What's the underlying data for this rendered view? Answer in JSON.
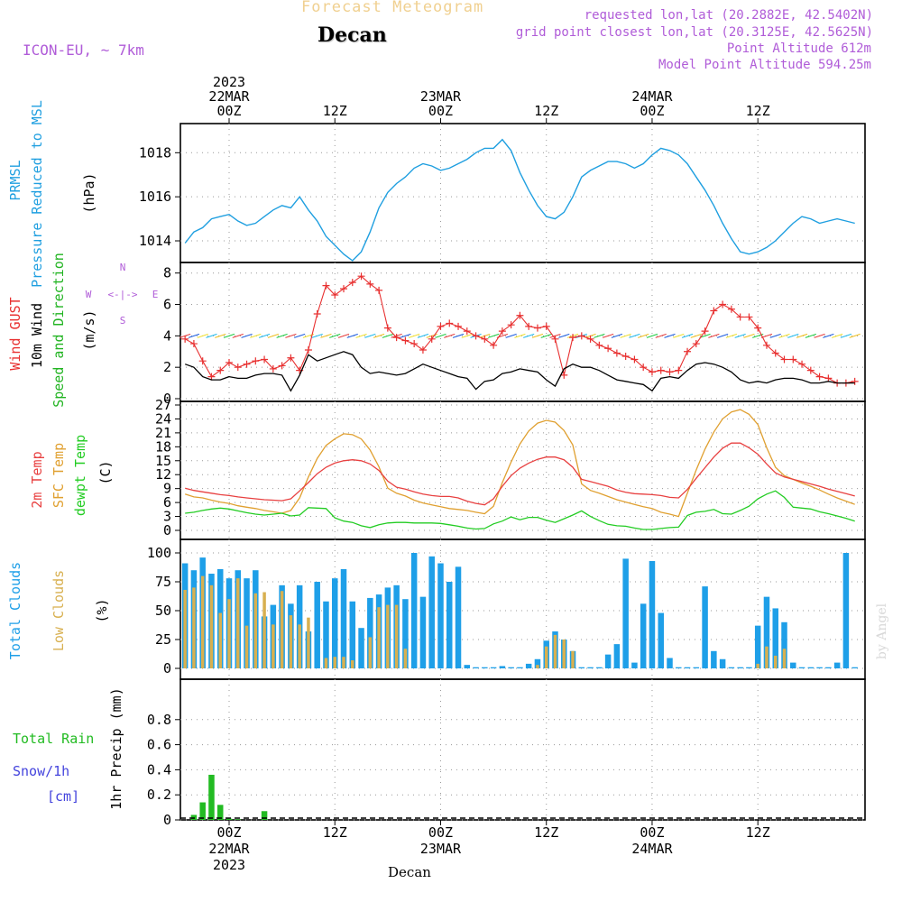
{
  "header": {
    "title": "Forecast Meteogram",
    "location": "Decan",
    "model": "ICON-EU, ~ 7km",
    "requested": "requested lon,lat (20.2882E, 42.5402N)",
    "grid_point": "grid point closest lon,lat (20.3125E, 42.5625N)",
    "point_altitude": "Point Altitude 612m",
    "model_altitude": "Model Point Altitude 594.25m",
    "watermark": "by Angel",
    "footer_location": "Decan",
    "compass": {
      "n": "N",
      "s": "S",
      "w": "W",
      "e": "E"
    },
    "compass_center": "<-|->"
  },
  "time_axis": {
    "top_labels": [
      {
        "hour": 0,
        "lines": [
          "2023",
          "22MAR",
          "00Z"
        ]
      },
      {
        "hour": 12,
        "lines": [
          "12Z"
        ]
      },
      {
        "hour": 24,
        "lines": [
          "23MAR",
          "00Z"
        ]
      },
      {
        "hour": 36,
        "lines": [
          "12Z"
        ]
      },
      {
        "hour": 48,
        "lines": [
          "24MAR",
          "00Z"
        ]
      },
      {
        "hour": 60,
        "lines": [
          "12Z"
        ]
      }
    ],
    "bottom_labels": [
      {
        "hour": 0,
        "lines": [
          "00Z",
          "22MAR",
          "2023"
        ]
      },
      {
        "hour": 12,
        "lines": [
          "12Z"
        ]
      },
      {
        "hour": 24,
        "lines": [
          "00Z",
          "23MAR"
        ]
      },
      {
        "hour": 36,
        "lines": [
          "12Z"
        ]
      },
      {
        "hour": 48,
        "lines": [
          "00Z",
          "24MAR"
        ]
      },
      {
        "hour": 60,
        "lines": [
          "12Z"
        ]
      }
    ]
  },
  "colors": {
    "pressure": "#1f9fe0",
    "gust": "#e83030",
    "wind": "#000000",
    "direction": "#22b422",
    "t2m": "#e84040",
    "sfc": "#e0a030",
    "dewpt": "#22cc22",
    "total_clouds": "#1e9fe8",
    "low_clouds": "#d8b050",
    "rain": "#22bb22",
    "snow": "#4444dd",
    "purple": "#b05cd8",
    "title": "#f0d090"
  },
  "chart_data": [
    {
      "type": "line",
      "name": "pressure",
      "labels": [
        "PRMSL",
        "Pressure Reduced to MSL",
        "(hPa)"
      ],
      "ylim": [
        1013.1,
        1019.2
      ],
      "yticks": [
        1014,
        1016,
        1018
      ],
      "x": [
        -5,
        -4,
        -3,
        -2,
        -1,
        0,
        1,
        2,
        3,
        4,
        5,
        6,
        7,
        8,
        9,
        10,
        11,
        12,
        13,
        14,
        15,
        16,
        17,
        18,
        19,
        20,
        21,
        22,
        23,
        24,
        25,
        26,
        27,
        28,
        29,
        30,
        31,
        32,
        33,
        34,
        35,
        36,
        37,
        38,
        39,
        40,
        41,
        42,
        43,
        44,
        45,
        46,
        47,
        48,
        49,
        50,
        51,
        52,
        53,
        54,
        55,
        56,
        57,
        58,
        59,
        60,
        61,
        62,
        63,
        64,
        65,
        66,
        67,
        68,
        69,
        70,
        71
      ],
      "values": [
        1013.9,
        1014.4,
        1014.6,
        1015.0,
        1015.1,
        1015.2,
        1014.9,
        1014.7,
        1014.8,
        1015.1,
        1015.4,
        1015.6,
        1015.5,
        1016.0,
        1015.4,
        1014.9,
        1014.2,
        1013.8,
        1013.4,
        1013.1,
        1013.5,
        1014.4,
        1015.5,
        1016.2,
        1016.6,
        1016.9,
        1017.3,
        1017.5,
        1017.4,
        1017.2,
        1017.3,
        1017.5,
        1017.7,
        1018.0,
        1018.2,
        1018.2,
        1018.6,
        1018.1,
        1017.1,
        1016.3,
        1015.6,
        1015.1,
        1015.0,
        1015.3,
        1016.0,
        1016.9,
        1017.2,
        1017.4,
        1017.6,
        1017.6,
        1017.5,
        1017.3,
        1017.5,
        1017.9,
        1018.2,
        1018.1,
        1017.9,
        1017.5,
        1016.9,
        1016.3,
        1015.6,
        1014.8,
        1014.1,
        1013.5,
        1013.4,
        1013.5,
        1013.7,
        1014.0,
        1014.4,
        1014.8,
        1015.1,
        1015.0,
        1014.8,
        1014.9,
        1015.0,
        1014.9,
        1014.8
      ]
    },
    {
      "type": "line",
      "name": "wind",
      "labels": [
        "Wind GUST",
        "10m Wind",
        "Speed and Direction",
        "(m/s)"
      ],
      "ylim": [
        0,
        8.5
      ],
      "yticks": [
        0,
        2,
        4,
        6,
        8
      ],
      "x": [
        -5,
        -4,
        -3,
        -2,
        -1,
        0,
        1,
        2,
        3,
        4,
        5,
        6,
        7,
        8,
        9,
        10,
        11,
        12,
        13,
        14,
        15,
        16,
        17,
        18,
        19,
        20,
        21,
        22,
        23,
        24,
        25,
        26,
        27,
        28,
        29,
        30,
        31,
        32,
        33,
        34,
        35,
        36,
        37,
        38,
        39,
        40,
        41,
        42,
        43,
        44,
        45,
        46,
        47,
        48,
        49,
        50,
        51,
        52,
        53,
        54,
        55,
        56,
        57,
        58,
        59,
        60,
        61,
        62,
        63,
        64,
        65,
        66,
        67,
        68,
        69,
        70,
        71
      ],
      "gust": [
        3.8,
        3.5,
        2.4,
        1.4,
        1.8,
        2.3,
        2.0,
        2.2,
        2.4,
        2.5,
        1.9,
        2.1,
        2.6,
        1.8,
        3.1,
        5.4,
        7.2,
        6.6,
        7.0,
        7.4,
        7.8,
        7.3,
        6.9,
        4.5,
        3.9,
        3.7,
        3.5,
        3.1,
        3.8,
        4.6,
        4.8,
        4.6,
        4.3,
        4.0,
        3.8,
        3.4,
        4.3,
        4.7,
        5.3,
        4.6,
        4.5,
        4.6,
        3.8,
        1.5,
        3.9,
        4.0,
        3.8,
        3.4,
        3.2,
        2.9,
        2.7,
        2.5,
        2.0,
        1.7,
        1.8,
        1.7,
        1.8,
        3.0,
        3.5,
        4.3,
        5.6,
        6.0,
        5.7,
        5.2,
        5.2,
        4.5,
        3.4,
        2.9,
        2.5,
        2.5,
        2.2,
        1.8,
        1.4,
        1.3,
        1.0,
        1.0,
        1.1
      ],
      "speed": [
        2.2,
        2.0,
        1.4,
        1.2,
        1.2,
        1.4,
        1.3,
        1.3,
        1.5,
        1.6,
        1.6,
        1.5,
        0.5,
        1.5,
        2.8,
        2.4,
        2.6,
        2.8,
        3.0,
        2.8,
        2.0,
        1.6,
        1.7,
        1.6,
        1.5,
        1.6,
        1.9,
        2.2,
        2.0,
        1.8,
        1.6,
        1.4,
        1.3,
        0.6,
        1.1,
        1.2,
        1.6,
        1.7,
        1.9,
        1.8,
        1.7,
        1.2,
        0.8,
        1.9,
        2.2,
        2.0,
        2.0,
        1.8,
        1.5,
        1.2,
        1.1,
        1.0,
        0.9,
        0.5,
        1.3,
        1.4,
        1.3,
        1.8,
        2.2,
        2.3,
        2.2,
        2.0,
        1.7,
        1.2,
        1.0,
        1.1,
        1.0,
        1.2,
        1.3,
        1.3,
        1.2,
        1.0,
        1.0,
        1.1,
        1.0,
        1.0,
        1.0
      ]
    },
    {
      "type": "line",
      "name": "temperature",
      "labels": [
        "2m Temp",
        "SFC Temp",
        "dewpt Temp",
        "(C)"
      ],
      "ylim": [
        0,
        27
      ],
      "yticks": [
        0,
        3,
        6,
        9,
        12,
        15,
        18,
        21,
        24,
        27
      ],
      "x": [
        -5,
        -4,
        -3,
        -2,
        -1,
        0,
        1,
        2,
        3,
        4,
        5,
        6,
        7,
        8,
        9,
        10,
        11,
        12,
        13,
        14,
        15,
        16,
        17,
        18,
        19,
        20,
        21,
        22,
        23,
        24,
        25,
        26,
        27,
        28,
        29,
        30,
        31,
        32,
        33,
        34,
        35,
        36,
        37,
        38,
        39,
        40,
        41,
        42,
        43,
        44,
        45,
        46,
        47,
        48,
        49,
        50,
        51,
        52,
        53,
        54,
        55,
        56,
        57,
        58,
        59,
        60,
        61,
        62,
        63,
        64,
        65,
        66,
        67,
        68,
        69,
        70,
        71
      ],
      "t2m": [
        9.1,
        8.6,
        8.3,
        8.0,
        7.7,
        7.5,
        7.2,
        7.0,
        6.8,
        6.6,
        6.5,
        6.4,
        6.8,
        8.5,
        10.3,
        12.2,
        13.6,
        14.5,
        15.0,
        15.2,
        15.0,
        14.3,
        12.9,
        10.6,
        9.3,
        8.9,
        8.3,
        7.8,
        7.5,
        7.3,
        7.3,
        7.0,
        6.3,
        5.8,
        5.5,
        6.8,
        9.5,
        11.8,
        13.4,
        14.5,
        15.3,
        15.8,
        15.8,
        15.2,
        13.6,
        11.0,
        10.5,
        10.0,
        9.5,
        8.7,
        8.2,
        7.9,
        7.8,
        7.7,
        7.5,
        7.1,
        7.0,
        8.8,
        11.2,
        13.5,
        15.8,
        17.7,
        18.8,
        18.8,
        17.8,
        16.4,
        14.3,
        12.4,
        11.5,
        11.0,
        10.5,
        10.0,
        9.5,
        8.9,
        8.4,
        7.9,
        7.4
      ],
      "sfc": [
        7.8,
        7.2,
        7.0,
        6.5,
        6.1,
        5.8,
        5.3,
        5.0,
        4.7,
        4.3,
        4.0,
        3.7,
        4.3,
        7.0,
        11.5,
        15.5,
        18.3,
        19.7,
        20.8,
        20.6,
        19.7,
        17.3,
        13.7,
        9.1,
        8.0,
        7.4,
        6.5,
        5.9,
        5.5,
        5.1,
        4.7,
        4.5,
        4.3,
        3.9,
        3.6,
        5.2,
        10.3,
        14.7,
        18.6,
        21.4,
        23.1,
        23.7,
        23.3,
        21.5,
        18.4,
        10.0,
        8.6,
        8.0,
        7.3,
        6.6,
        6.1,
        5.6,
        5.1,
        4.7,
        3.9,
        3.5,
        3.0,
        8.0,
        13.0,
        17.5,
        21.2,
        24.0,
        25.5,
        26.0,
        25.0,
        22.8,
        17.8,
        13.6,
        11.8,
        11.0,
        10.2,
        9.5,
        8.7,
        7.8,
        7.0,
        6.3,
        5.6
      ],
      "dewpt": [
        3.7,
        3.9,
        4.3,
        4.6,
        4.8,
        4.6,
        4.2,
        3.8,
        3.5,
        3.3,
        3.5,
        3.7,
        3.1,
        3.3,
        4.9,
        4.8,
        4.7,
        2.7,
        2.0,
        1.7,
        1.0,
        0.6,
        1.2,
        1.6,
        1.7,
        1.7,
        1.6,
        1.6,
        1.6,
        1.5,
        1.2,
        0.9,
        0.5,
        0.3,
        0.4,
        1.4,
        2.0,
        2.9,
        2.3,
        2.8,
        2.8,
        2.2,
        1.7,
        2.5,
        3.3,
        4.2,
        3.0,
        2.1,
        1.3,
        1.0,
        0.9,
        0.5,
        0.2,
        0.2,
        0.4,
        0.6,
        0.7,
        3.2,
        3.9,
        4.1,
        4.5,
        3.6,
        3.5,
        4.3,
        5.2,
        6.8,
        7.8,
        8.5,
        7.1,
        5.0,
        4.8,
        4.6,
        4.0,
        3.6,
        3.1,
        2.6,
        2.0
      ]
    },
    {
      "type": "bar",
      "name": "clouds",
      "labels": [
        "Total Clouds",
        "Low Clouds",
        "(%)"
      ],
      "ylim": [
        0,
        100
      ],
      "yticks": [
        0,
        25,
        50,
        75,
        100
      ],
      "x": [
        -5,
        -4,
        -3,
        -2,
        -1,
        0,
        1,
        2,
        3,
        4,
        5,
        6,
        7,
        8,
        9,
        10,
        11,
        12,
        13,
        14,
        15,
        16,
        17,
        18,
        19,
        20,
        21,
        22,
        23,
        24,
        25,
        26,
        27,
        28,
        29,
        30,
        31,
        32,
        33,
        34,
        35,
        36,
        37,
        38,
        39,
        40,
        41,
        42,
        43,
        44,
        45,
        46,
        47,
        48,
        49,
        50,
        51,
        52,
        53,
        54,
        55,
        56,
        57,
        58,
        59,
        60,
        61,
        62,
        63,
        64,
        65,
        66,
        67,
        68,
        69,
        70,
        71
      ],
      "total": [
        91,
        85,
        96,
        82,
        86,
        78,
        85,
        78,
        85,
        45,
        55,
        72,
        56,
        72,
        32,
        75,
        58,
        78,
        86,
        58,
        35,
        61,
        64,
        70,
        72,
        60,
        100,
        62,
        97,
        91,
        75,
        88,
        3,
        1,
        1,
        1,
        2,
        1,
        1,
        4,
        8,
        24,
        32,
        25,
        15,
        1,
        1,
        1,
        12,
        21,
        95,
        5,
        56,
        93,
        48,
        9,
        1,
        1,
        1,
        71,
        15,
        8,
        1,
        1,
        1,
        37,
        62,
        52,
        40,
        5,
        1,
        1,
        1,
        1,
        5,
        100,
        1
      ],
      "low": [
        68,
        70,
        80,
        72,
        48,
        60,
        78,
        37,
        65,
        66,
        38,
        67,
        46,
        38,
        44,
        0,
        9,
        10,
        10,
        7,
        0,
        27,
        53,
        55,
        55,
        17,
        0,
        0,
        0,
        0,
        0,
        0,
        0,
        0,
        0,
        0,
        0,
        0,
        0,
        0,
        3,
        19,
        29,
        25,
        15,
        0,
        0,
        0,
        0,
        0,
        0,
        0,
        0,
        0,
        0,
        0,
        0,
        0,
        0,
        0,
        0,
        0,
        0,
        0,
        0,
        4,
        19,
        11,
        17,
        0,
        0,
        0,
        0,
        0,
        0,
        0,
        0
      ]
    },
    {
      "type": "bar",
      "name": "precip",
      "labels": [
        "Total Rain",
        "Snow/1h",
        "[cm]",
        "1hr Precip (mm)"
      ],
      "ylim": [
        0,
        1
      ],
      "yticks": [
        0,
        0.2,
        0.4,
        0.6,
        0.8
      ],
      "ytick_labels": [
        "0",
        "0.2",
        "0.4",
        "0.6",
        "0.8"
      ],
      "x": [
        -4,
        -3,
        -2,
        -1,
        0,
        1,
        2,
        3,
        4,
        5
      ],
      "rain": [
        0.04,
        0.14,
        0.36,
        0.12,
        0.01,
        0.005,
        0,
        0,
        0.07,
        0
      ]
    }
  ]
}
